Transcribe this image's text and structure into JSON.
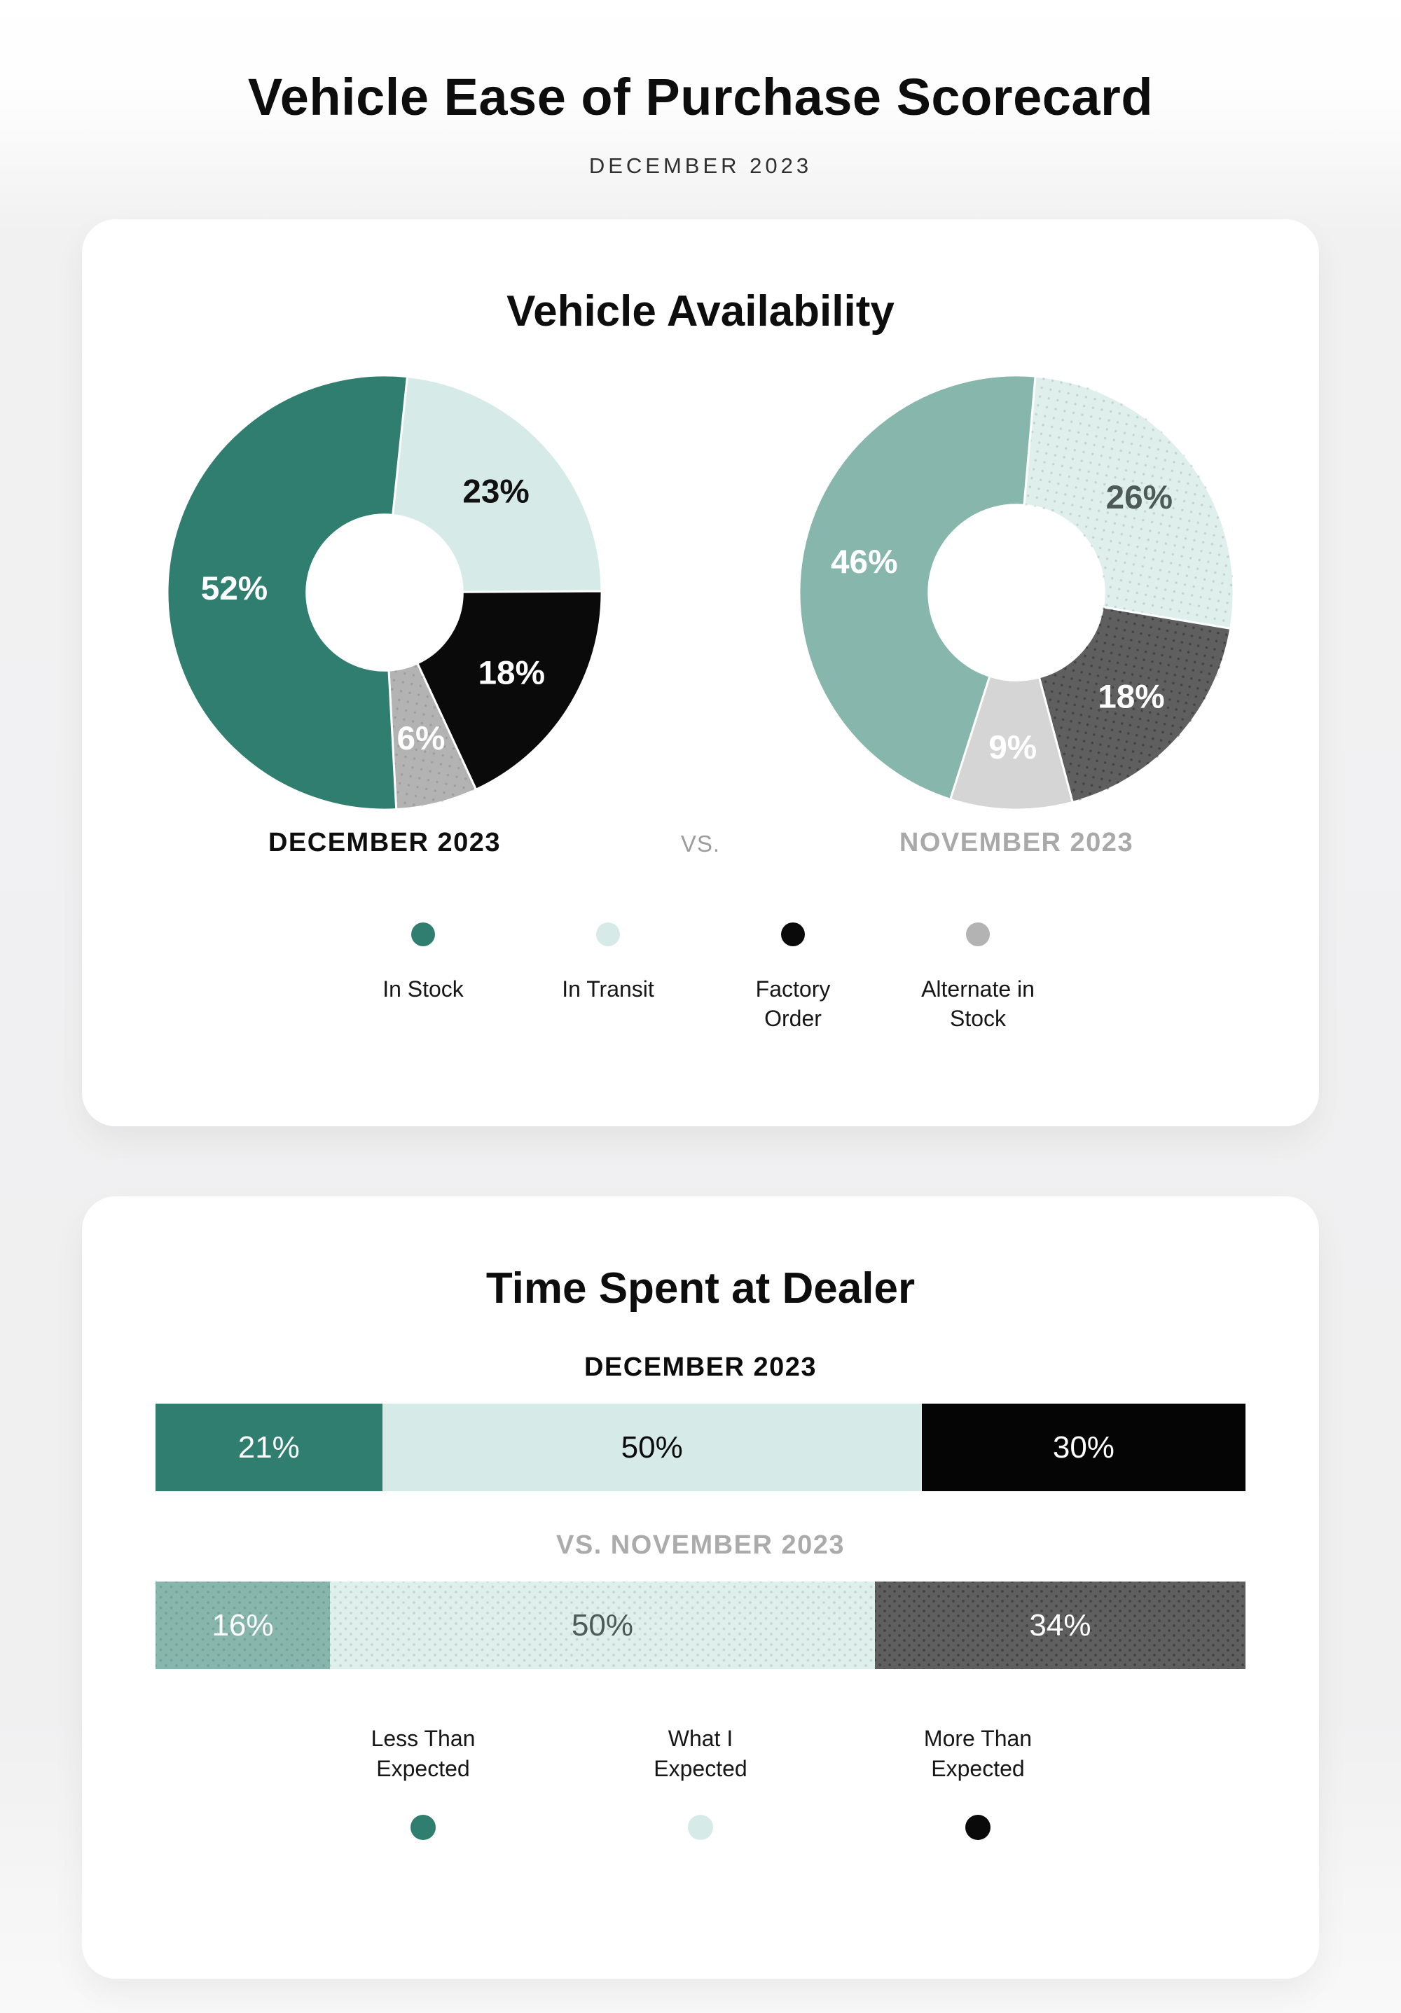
{
  "page": {
    "title": "Vehicle Ease of Purchase Scorecard",
    "subtitle": "DECEMBER 2023"
  },
  "availability": {
    "title": "Vehicle Availability",
    "current_month_label": "DECEMBER 2023",
    "vs_label": "VS.",
    "previous_month_label": "NOVEMBER 2023",
    "legend": [
      {
        "label": "In Stock",
        "color": "#2F7E70"
      },
      {
        "label": "In Transit",
        "color": "#D6EBE7"
      },
      {
        "label": "Factory\nOrder",
        "color": "#0A0A0A"
      },
      {
        "label": "Alternate in\nStock",
        "color": "#B3B3B3"
      }
    ],
    "donuts": [
      {
        "id": "december",
        "start_angle": 6,
        "inner_radius": 112,
        "slices": [
          {
            "category": "In Transit",
            "value": 23,
            "color": "#D6EBE7",
            "text_color": "#111111",
            "dotted": null
          },
          {
            "category": "Factory Order",
            "value": 18,
            "color": "#0A0A0A",
            "text_color": "#ffffff",
            "dotted": null
          },
          {
            "category": "Alternate in Stock",
            "value": 6,
            "color": "#B3B3B3",
            "text_color": "#ffffff",
            "dotted": "soft"
          },
          {
            "category": "In Stock",
            "value": 52,
            "color": "#2F7E70",
            "text_color": "#ffffff",
            "dotted": null
          }
        ]
      },
      {
        "id": "november",
        "start_angle": 5,
        "inner_radius": 126,
        "slices": [
          {
            "category": "In Transit",
            "value": 26,
            "color": "#DFF0EC",
            "text_color": "#4E5A57",
            "dotted": "soft"
          },
          {
            "category": "Factory Order",
            "value": 18,
            "color": "#5F5F5F",
            "text_color": "#ffffff",
            "dotted": "strong"
          },
          {
            "category": "Alternate in Stock",
            "value": 9,
            "color": "#D5D5D5",
            "text_color": "#ffffff",
            "dotted": null
          },
          {
            "category": "In Stock",
            "value": 46,
            "color": "#87B6AC",
            "text_color": "#ffffff",
            "dotted": null
          }
        ]
      }
    ]
  },
  "time_spent": {
    "title": "Time Spent at Dealer",
    "current_header": "DECEMBER 2023",
    "previous_header": "VS. NOVEMBER 2023",
    "legend": [
      {
        "label": "Less Than\nExpected",
        "color": "#2F7E70"
      },
      {
        "label": "What I\nExpected",
        "color": "#D6EBE7"
      },
      {
        "label": "More Than\nExpected",
        "color": "#0A0A0A"
      }
    ],
    "bars": [
      {
        "id": "december",
        "segments": [
          {
            "category": "Less Than Expected",
            "value": 21,
            "color": "#2F7E70",
            "text_color": "#ffffff",
            "dotted": null
          },
          {
            "category": "What I Expected",
            "value": 50,
            "color": "#D6EBE7",
            "text_color": "#0b0b0b",
            "dotted": null
          },
          {
            "category": "More Than Expected",
            "value": 30,
            "color": "#050505",
            "text_color": "#ffffff",
            "dotted": null
          }
        ]
      },
      {
        "id": "november",
        "segments": [
          {
            "category": "Less Than Expected",
            "value": 16,
            "color": "#87B6AC",
            "text_color": "#ffffff",
            "dotted": "soft"
          },
          {
            "category": "What I Expected",
            "value": 50,
            "color": "#DFF0EC",
            "text_color": "#4E5A57",
            "dotted": "soft"
          },
          {
            "category": "More Than Expected",
            "value": 34,
            "color": "#5F5F5F",
            "text_color": "#ffffff",
            "dotted": "strong"
          }
        ]
      }
    ]
  },
  "chart_data": [
    {
      "type": "pie",
      "donut": true,
      "title": "Vehicle Availability - December 2023",
      "categories": [
        "In Stock",
        "In Transit",
        "Factory Order",
        "Alternate in Stock"
      ],
      "values": [
        52,
        23,
        18,
        6
      ],
      "labels": [
        "52%",
        "23%",
        "18%",
        "6%"
      ],
      "colors": [
        "#2F7E70",
        "#D6EBE7",
        "#0A0A0A",
        "#B3B3B3"
      ],
      "legend_position": "bottom"
    },
    {
      "type": "pie",
      "donut": true,
      "title": "Vehicle Availability - November 2023",
      "categories": [
        "In Stock",
        "In Transit",
        "Factory Order",
        "Alternate in Stock"
      ],
      "values": [
        46,
        26,
        18,
        9
      ],
      "labels": [
        "46%",
        "26%",
        "18%",
        "9%"
      ],
      "colors": [
        "#87B6AC",
        "#DFF0EC",
        "#5F5F5F",
        "#D5D5D5"
      ],
      "legend_position": "bottom"
    },
    {
      "type": "bar",
      "stacked": true,
      "orientation": "horizontal",
      "title": "Time Spent at Dealer - December 2023",
      "categories": [
        "Less Than Expected",
        "What I Expected",
        "More Than Expected"
      ],
      "values": [
        21,
        50,
        30
      ],
      "labels": [
        "21%",
        "50%",
        "30%"
      ],
      "colors": [
        "#2F7E70",
        "#D6EBE7",
        "#050505"
      ],
      "legend_position": "bottom"
    },
    {
      "type": "bar",
      "stacked": true,
      "orientation": "horizontal",
      "title": "Time Spent at Dealer - November 2023",
      "categories": [
        "Less Than Expected",
        "What I Expected",
        "More Than Expected"
      ],
      "values": [
        16,
        50,
        34
      ],
      "labels": [
        "16%",
        "50%",
        "34%"
      ],
      "colors": [
        "#87B6AC",
        "#DFF0EC",
        "#5F5F5F"
      ],
      "legend_position": "bottom"
    }
  ]
}
